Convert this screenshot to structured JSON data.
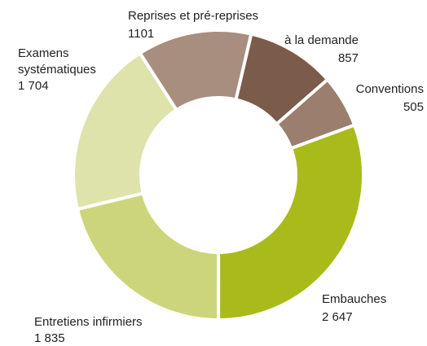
{
  "chart_data": {
    "type": "donut",
    "categories": [
      "Embauches",
      "Entretiens infirmiers",
      "Examens\nsystématiques",
      "Reprises et pré-reprises",
      "à la demande",
      "Conventions"
    ],
    "values": [
      2647,
      1835,
      1704,
      1101,
      857,
      505
    ],
    "value_labels": [
      "2 647",
      "1 835",
      "1 704",
      "1101",
      "857",
      "505"
    ],
    "colors": [
      "#a9bb1a",
      "#cdd57c",
      "#dee3ab",
      "#a88e7e",
      "#7b5b49",
      "#9b7e6d"
    ]
  }
}
